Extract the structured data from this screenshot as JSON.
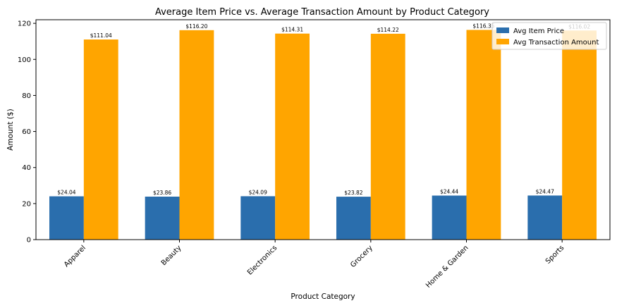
{
  "chart_data": {
    "type": "bar",
    "title": "Average Item Price vs. Average Transaction Amount by Product Category",
    "xlabel": "Product Category",
    "ylabel": "Amount ($)",
    "categories": [
      "Apparel",
      "Beauty",
      "Electronics",
      "Grocery",
      "Home & Garden",
      "Sports"
    ],
    "ylim": [
      0,
      122
    ],
    "yticks": [
      0,
      20,
      40,
      60,
      80,
      100,
      120
    ],
    "yticks_text": [
      "0",
      "20",
      "40",
      "60",
      "80",
      "100",
      "120"
    ],
    "grid": false,
    "legend_position": "top-right",
    "series": [
      {
        "name": "Avg Item Price",
        "color": "#2a6ead",
        "values": [
          24.04,
          23.86,
          24.09,
          23.82,
          24.44,
          24.47
        ],
        "labels": [
          "$24.04",
          "$23.86",
          "$24.09",
          "$23.82",
          "$24.44",
          "$24.47"
        ]
      },
      {
        "name": "Avg Transaction Amount",
        "color": "#ffa500",
        "values": [
          111.04,
          116.2,
          114.31,
          114.22,
          116.35,
          116.02
        ],
        "labels": [
          "$111.04",
          "$116.20",
          "$114.31",
          "$114.22",
          "$116.35",
          "$116.02"
        ]
      }
    ]
  }
}
